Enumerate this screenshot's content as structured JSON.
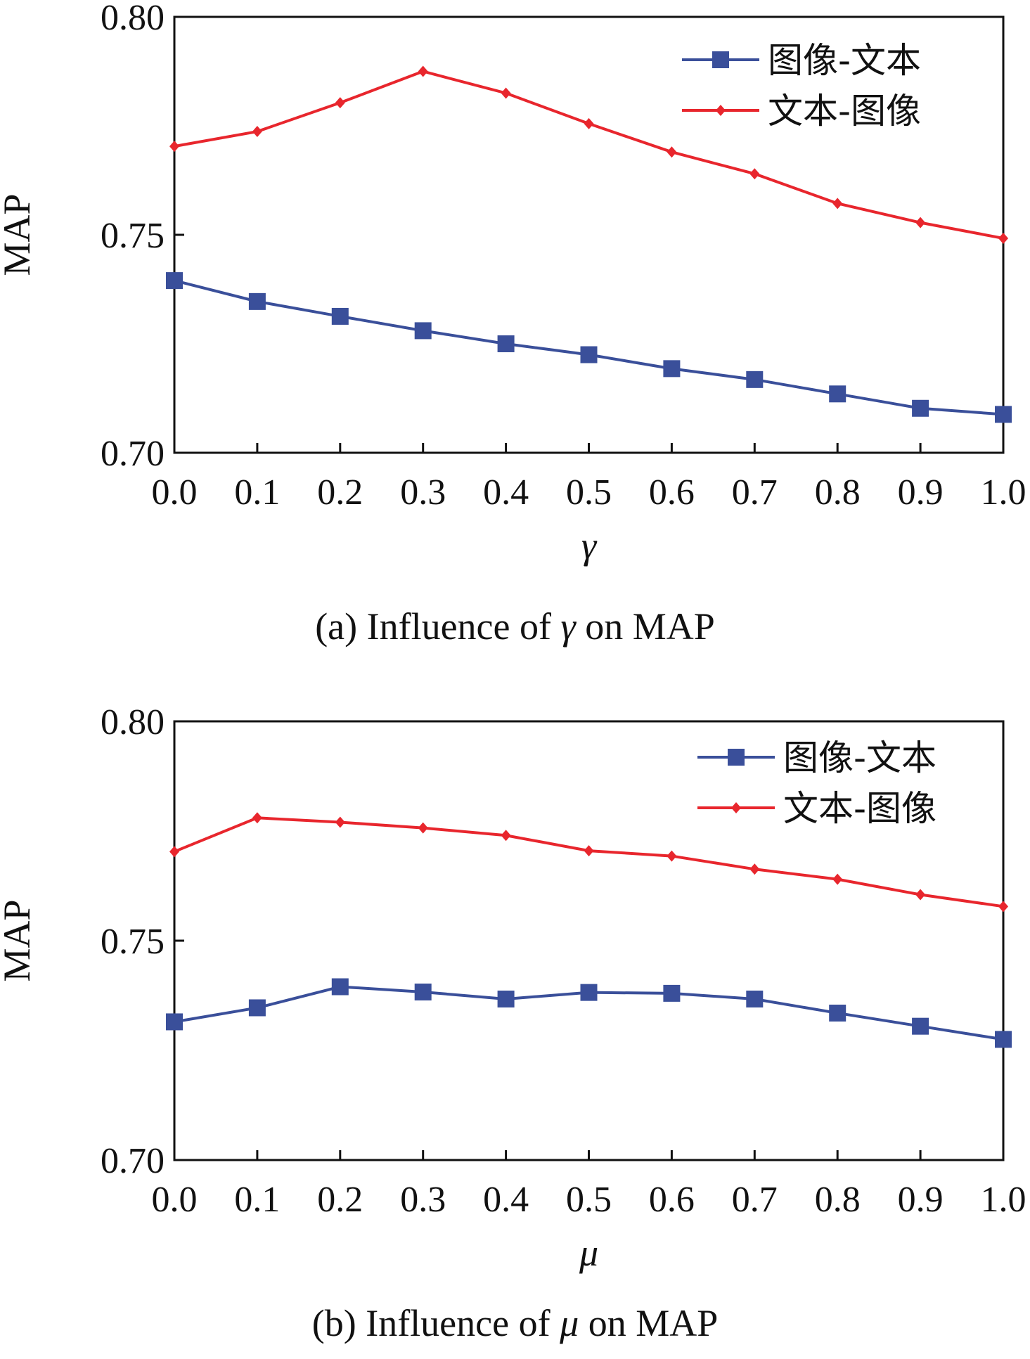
{
  "chart_data": [
    {
      "type": "line",
      "caption": {
        "prefix": "(a) Influence of ",
        "symbol": "γ",
        "suffix": " on MAP"
      },
      "xlabel": "γ",
      "ylabel": "MAP",
      "x": [
        0.0,
        0.1,
        0.2,
        0.3,
        0.4,
        0.5,
        0.6,
        0.7,
        0.8,
        0.9,
        1.0
      ],
      "x_tick_labels": [
        "0.0",
        "0.1",
        "0.2",
        "0.3",
        "0.4",
        "0.5",
        "0.6",
        "0.7",
        "0.8",
        "0.9",
        "1.0"
      ],
      "ylim": [
        0.7,
        0.8
      ],
      "y_ticks": [
        0.7,
        0.75,
        0.8
      ],
      "y_tick_labels": [
        "0.70",
        "0.75",
        "0.80"
      ],
      "grid": false,
      "legend_position": "top-right",
      "series": [
        {
          "name": "图像-文本",
          "color": "#3a4f9a",
          "marker": "square",
          "values": [
            0.7395,
            0.7347,
            0.7313,
            0.728,
            0.725,
            0.7225,
            0.7193,
            0.7168,
            0.7135,
            0.7102,
            0.7088
          ]
        },
        {
          "name": "文本-图像",
          "color": "#e8262d",
          "marker": "diamond",
          "values": [
            0.7703,
            0.7737,
            0.7803,
            0.7875,
            0.7825,
            0.7755,
            0.769,
            0.764,
            0.7572,
            0.7528,
            0.7492
          ]
        }
      ]
    },
    {
      "type": "line",
      "caption": {
        "prefix": "(b) Influence of ",
        "symbol": "μ",
        "suffix": " on MAP"
      },
      "xlabel": "μ",
      "ylabel": "MAP",
      "x": [
        0.0,
        0.1,
        0.2,
        0.3,
        0.4,
        0.5,
        0.6,
        0.7,
        0.8,
        0.9,
        1.0
      ],
      "x_tick_labels": [
        "0.0",
        "0.1",
        "0.2",
        "0.3",
        "0.4",
        "0.5",
        "0.6",
        "0.7",
        "0.8",
        "0.9",
        "1.0"
      ],
      "ylim": [
        0.7,
        0.8
      ],
      "y_ticks": [
        0.7,
        0.75,
        0.8
      ],
      "y_tick_labels": [
        "0.70",
        "0.75",
        "0.80"
      ],
      "grid": false,
      "legend_position": "top-right",
      "series": [
        {
          "name": "图像-文本",
          "color": "#3a4f9a",
          "marker": "square",
          "values": [
            0.7315,
            0.7347,
            0.7395,
            0.7383,
            0.7367,
            0.7382,
            0.738,
            0.7367,
            0.7335,
            0.7305,
            0.7275
          ]
        },
        {
          "name": "文本-图像",
          "color": "#e8262d",
          "marker": "diamond",
          "values": [
            0.7703,
            0.778,
            0.777,
            0.7757,
            0.774,
            0.7705,
            0.7693,
            0.7663,
            0.764,
            0.7605,
            0.7578
          ]
        }
      ]
    }
  ]
}
